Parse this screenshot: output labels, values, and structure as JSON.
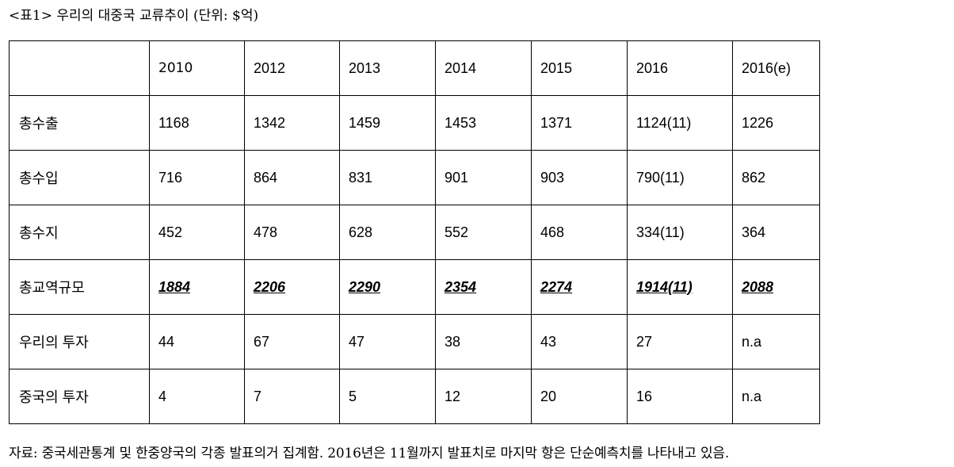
{
  "caption": "<표1> 우리의 대중국 교류추이 (단위: $억)",
  "table": {
    "header": [
      "",
      "2010",
      "2012",
      "2013",
      "2014",
      "2015",
      "2016",
      "2016(e)"
    ],
    "rows": [
      {
        "label": "총수출",
        "values": [
          "1168",
          "1342",
          "1459",
          "1453",
          "1371",
          "1124(11)",
          "1226"
        ]
      },
      {
        "label": "총수입",
        "values": [
          "716",
          "864",
          "831",
          "901",
          "903",
          "790(11)",
          "862"
        ]
      },
      {
        "label": "총수지",
        "values": [
          "452",
          "478",
          "628",
          "552",
          "468",
          "334(11)",
          "364"
        ]
      },
      {
        "label": "총교역규모",
        "values": [
          "1884",
          "2206",
          "2290",
          "2354",
          "2274",
          "1914(11)",
          "2088"
        ]
      },
      {
        "label": "우리의 투자",
        "values": [
          "44",
          "67",
          "47",
          "38",
          "43",
          "27",
          "n.a"
        ]
      },
      {
        "label": "중국의 투자",
        "values": [
          "4",
          "7",
          "5",
          "12",
          "20",
          "16",
          "n.a"
        ]
      }
    ]
  },
  "source_note": "자료: 중국세관통계 및 한중양국의 각종 발표의거 집계함. 2016년은 11월까지 발표치로 마지막 항은 단순예측치를 나타내고 있음."
}
